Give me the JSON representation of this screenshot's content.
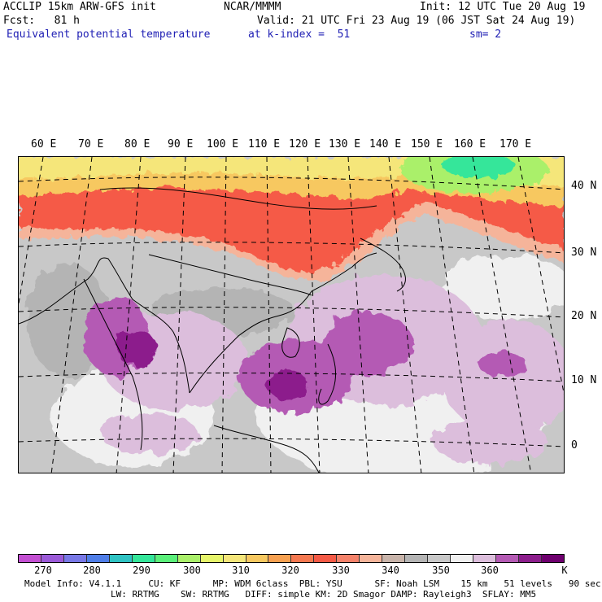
{
  "header": {
    "model_title": "ACCLIP 15km ARW-GFS init",
    "center": "NCAR/MMMM",
    "init": "Init: 12 UTC Tue 20 Aug 19",
    "fcst": "Fcst:   81 h",
    "valid": "Valid: 21 UTC Fri 23 Aug 19 (06 JST Sat 24 Aug 19)",
    "field": "Equivalent potential temperature",
    "level": "at k-index =  51",
    "smoothing": "sm= 2"
  },
  "map": {
    "lon_labels": [
      "60 E",
      "70 E",
      "80 E",
      "90 E",
      "100 E",
      "110 E",
      "120 E",
      "130 E",
      "140 E",
      "150 E",
      "160 E",
      "170 E"
    ],
    "lat_labels": [
      "40 N",
      "30 N",
      "20 N",
      "10 N",
      "0"
    ]
  },
  "colorbar": {
    "unit": "K",
    "tick_labels": [
      "270",
      "280",
      "290",
      "300",
      "310",
      "320",
      "330",
      "340",
      "350",
      "360"
    ],
    "colors": [
      "#c34fd2",
      "#9b5ad8",
      "#7878e6",
      "#4f7ee8",
      "#2fc3c3",
      "#34e69a",
      "#5af07a",
      "#aaf06a",
      "#e6f56a",
      "#f5e67a",
      "#f7c860",
      "#f7a050",
      "#f57850",
      "#f55a46",
      "#f5826a",
      "#f5b49a",
      "#c8b4aa",
      "#b4b4b4",
      "#c8c8c8",
      "#f0f0f0",
      "#dcbedc",
      "#b45ab4",
      "#8c1e8c",
      "#6e006e"
    ]
  },
  "footer": {
    "line1": "Model Info: V4.1.1     CU: KF      MP: WDM 6class  PBL: YSU      SF: Noah LSM    15 km   51 levels   90 sec",
    "line2": "                LW: RRTMG    SW: RRTMG   DIFF: simple KM: 2D Smagor DAMP: Rayleigh3  SFLAY: MM5"
  }
}
